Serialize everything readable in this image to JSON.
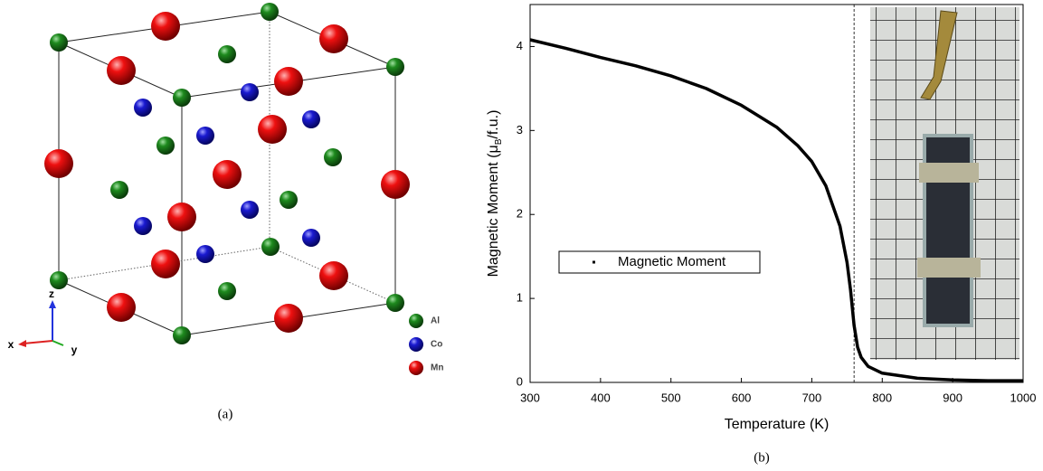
{
  "structure": {
    "axes": [
      "z",
      "x",
      "y"
    ],
    "legend": [
      "Al",
      "Co",
      "Mn"
    ],
    "caption": "(a)"
  },
  "chart_data": {
    "type": "line",
    "caption": "(b)",
    "xlabel": "Temperature (K)",
    "ylabel": [
      "Magnetic Moment (μ",
      "B",
      "/f.u.)"
    ],
    "x": [
      300,
      350,
      400,
      450,
      500,
      550,
      600,
      650,
      680,
      700,
      720,
      740,
      750,
      755,
      760,
      765,
      770,
      780,
      800,
      850,
      900,
      950,
      1000
    ],
    "series": [
      {
        "name": "Magnetic Moment",
        "color": "#000000",
        "values": [
          4.08,
          3.98,
          3.87,
          3.77,
          3.65,
          3.5,
          3.3,
          3.04,
          2.82,
          2.63,
          2.34,
          1.86,
          1.43,
          1.1,
          0.68,
          0.42,
          0.3,
          0.19,
          0.11,
          0.05,
          0.03,
          0.02,
          0.02
        ]
      }
    ],
    "xlim": [
      300,
      1000
    ],
    "xticks": [
      300,
      400,
      500,
      600,
      700,
      800,
      900,
      1000
    ],
    "ylim": [
      0,
      4.5
    ],
    "yticks": [
      0,
      1,
      2,
      3,
      4
    ],
    "vline": 760
  }
}
